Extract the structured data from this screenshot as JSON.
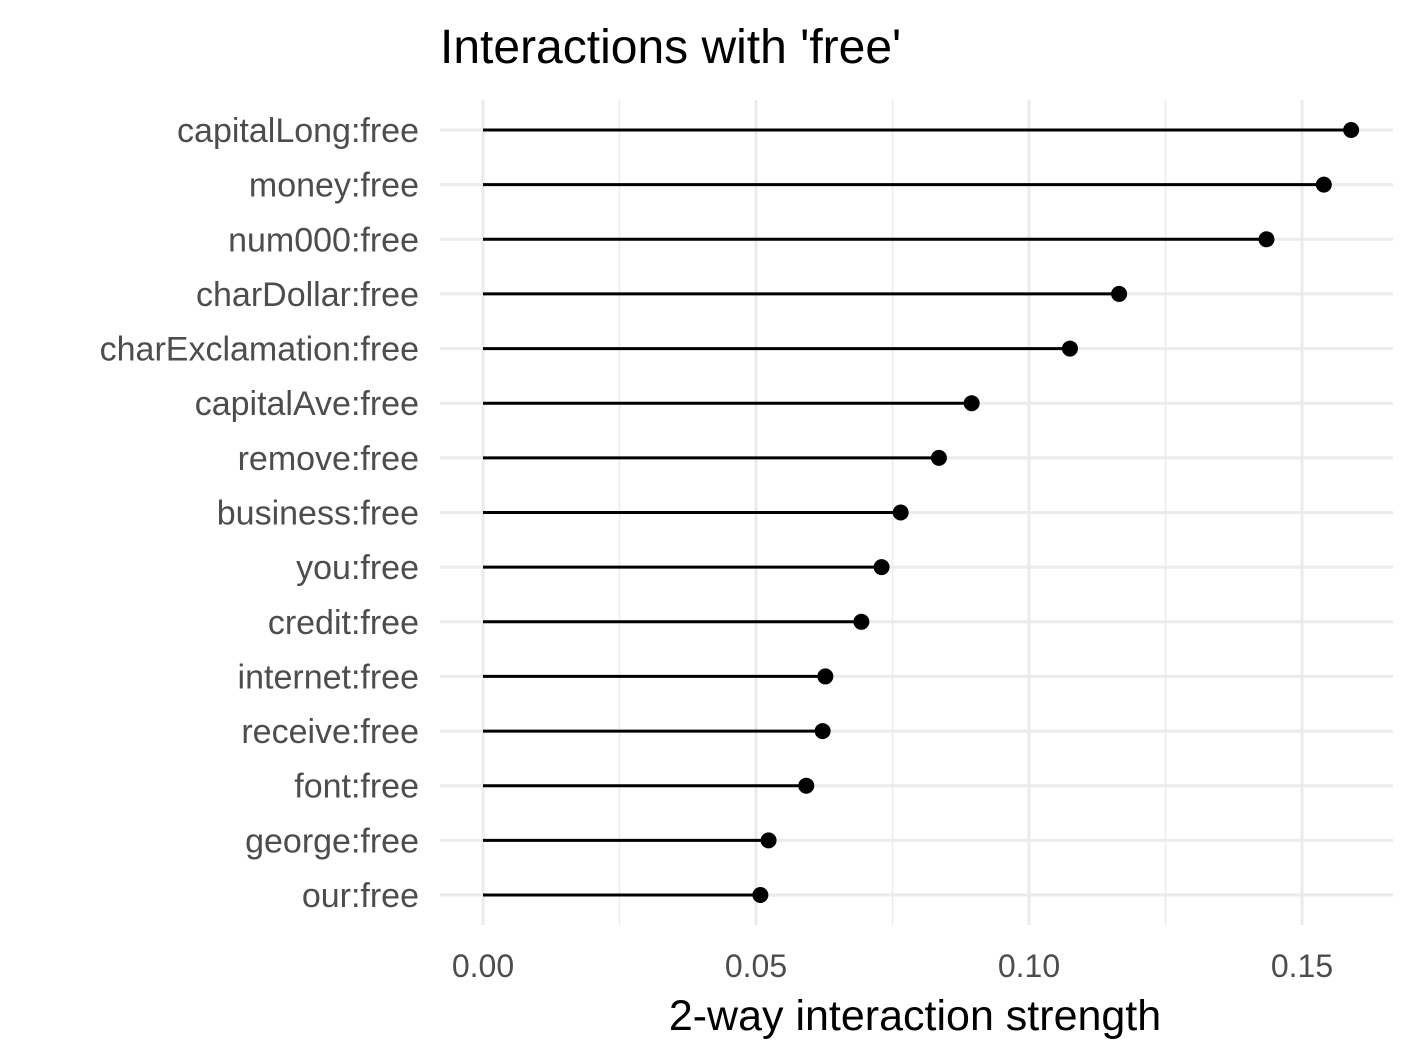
{
  "chart_data": {
    "type": "lollipop",
    "title": "Interactions with 'free'",
    "xlabel": "2-way interaction strength",
    "ylabel": "",
    "xlim": [
      0,
      0.166
    ],
    "x_ticks": [
      "0.00",
      "0.05",
      "0.10",
      "0.15"
    ],
    "x_tick_values": [
      0,
      0.05,
      0.1,
      0.15
    ],
    "x_minor_values": [
      0.025,
      0.075,
      0.125
    ],
    "grid": true,
    "categories": [
      "capitalLong:free",
      "money:free",
      "num000:free",
      "charDollar:free",
      "charExclamation:free",
      "capitalAve:free",
      "remove:free",
      "business:free",
      "you:free",
      "credit:free",
      "internet:free",
      "receive:free",
      "font:free",
      "george:free",
      "our:free"
    ],
    "values": [
      0.159,
      0.154,
      0.1435,
      0.1165,
      0.1075,
      0.0895,
      0.0835,
      0.0765,
      0.073,
      0.0693,
      0.0627,
      0.0622,
      0.0592,
      0.0523,
      0.0508
    ],
    "colors": {
      "mark": "#000000",
      "grid": "#ebebeb",
      "axis_text": "#4d4d4d"
    }
  }
}
